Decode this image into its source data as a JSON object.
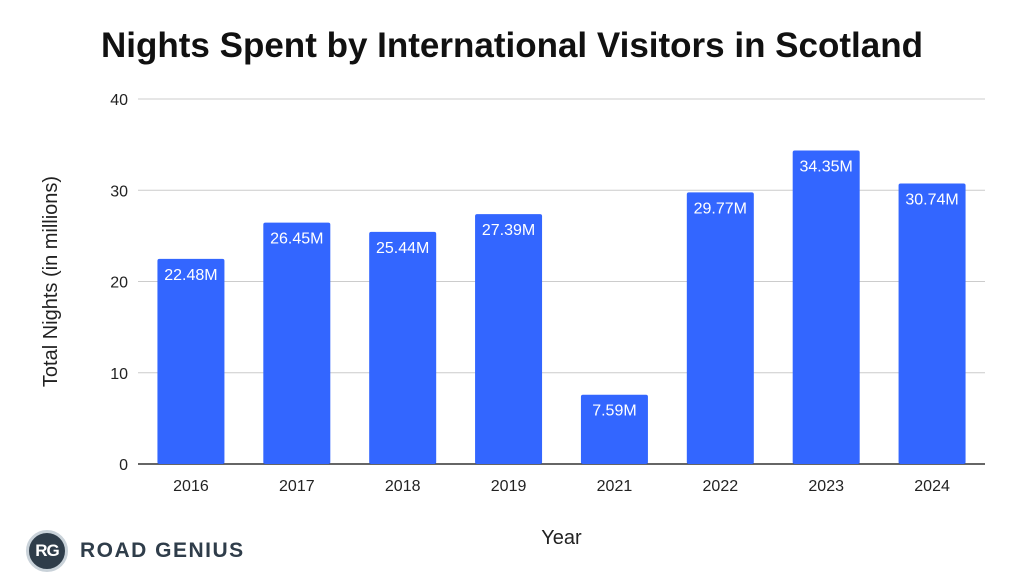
{
  "chart_data": {
    "type": "bar",
    "title": "Nights Spent by International Visitors in Scotland",
    "xlabel": "Year",
    "ylabel": "Total Nights (in millions)",
    "categories": [
      "2016",
      "2017",
      "2018",
      "2019",
      "2021",
      "2022",
      "2023",
      "2024"
    ],
    "values": [
      22.48,
      26.45,
      25.44,
      27.39,
      7.59,
      29.77,
      34.35,
      30.74
    ],
    "data_labels": [
      "22.48M",
      "26.45M",
      "25.44M",
      "27.39M",
      "7.59M",
      "29.77M",
      "34.35M",
      "30.74M"
    ],
    "ylim": [
      0,
      40
    ],
    "yticks": [
      0,
      10,
      20,
      30,
      40
    ],
    "grid": true,
    "legend": "none",
    "bar_color": "#3366ff"
  },
  "branding": {
    "logo_initials": "RG",
    "logo_text": "ROAD GENIUS"
  }
}
